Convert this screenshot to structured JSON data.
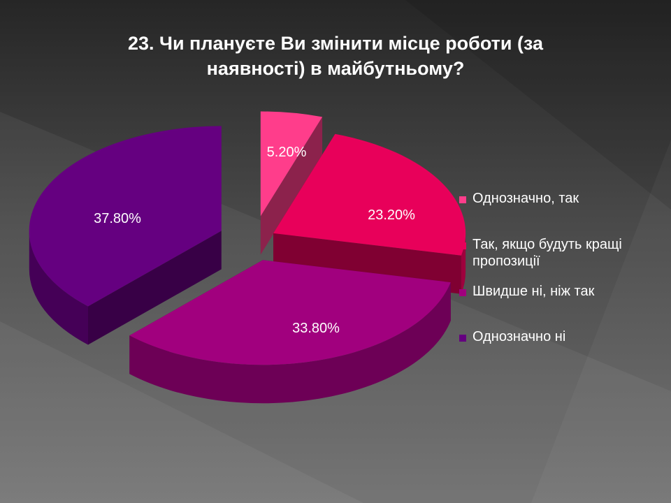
{
  "title_lines": [
    "23. Чи плануєте Ви змінити місце роботи (за",
    "наявності) в майбутньому?"
  ],
  "chart_data": {
    "type": "pie",
    "title": "23. Чи плануєте Ви змінити місце роботи (за наявності) в майбутньому?",
    "categories": [
      "Однозначно, так",
      "Так, якщо будуть кращі пропозиції",
      "Швидше ні, ніж так",
      "Однозначно ні"
    ],
    "values": [
      5.2,
      23.2,
      33.8,
      37.8
    ],
    "data_labels": [
      "5.20%",
      "23.20%",
      "33.80%",
      "37.80%"
    ],
    "colors": [
      "#ff3d8b",
      "#e8005a",
      "#a1007e",
      "#650080"
    ],
    "legend_position": "right",
    "style": "3d-exploded"
  },
  "legend": {
    "items": [
      {
        "label": "Однозначно, так",
        "color": "#ff3d8b"
      },
      {
        "label": "Так, якщо будуть кращі пропозиції",
        "color": "#e8005a"
      },
      {
        "label": "Швидше ні, ніж так",
        "color": "#a1007e"
      },
      {
        "label": "Однозначно ні",
        "color": "#650080"
      }
    ]
  }
}
